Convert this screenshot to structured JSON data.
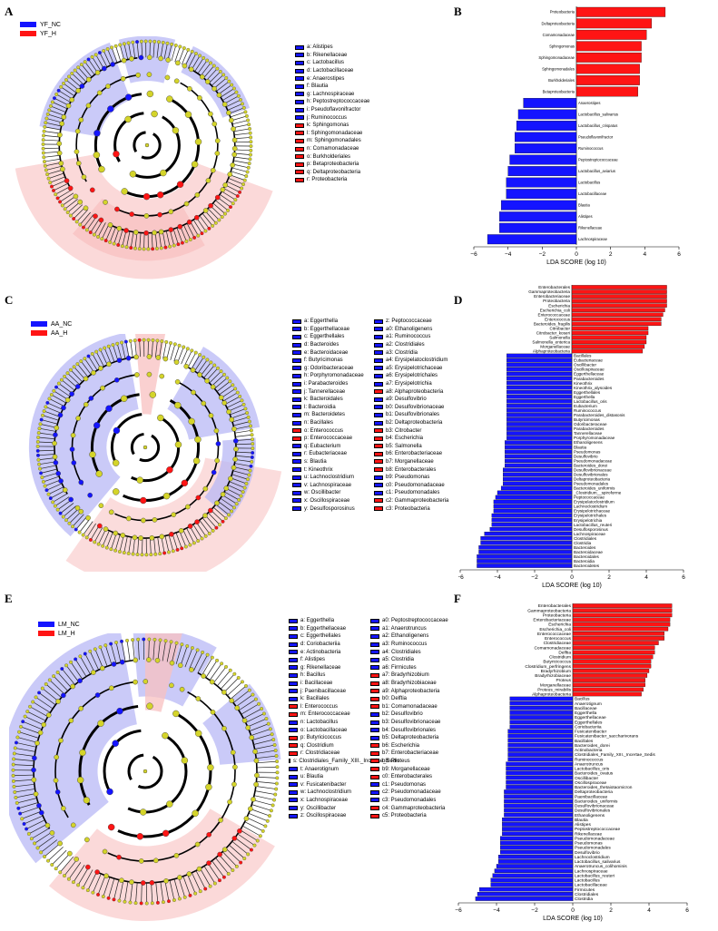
{
  "colors": {
    "nc": "#1414ff",
    "h": "#ff1414",
    "node": "#d4d42a",
    "blue_shade": "#b8b8f5",
    "red_shade": "#f8c0c0"
  },
  "panels": [
    {
      "label": "A",
      "groups": [
        "YF_NC",
        "YF_H"
      ],
      "legend_cols": [
        [
          {
            "t": "a: Alistipes",
            "g": "nc"
          },
          {
            "t": "b: Rikenellaceae",
            "g": "nc"
          },
          {
            "t": "c: Lactobacillus",
            "g": "nc"
          },
          {
            "t": "d: Lactobacillaceae",
            "g": "nc"
          },
          {
            "t": "e: Anaerostipes",
            "g": "nc"
          },
          {
            "t": "f: Blautia",
            "g": "nc"
          },
          {
            "t": "g: Lachnospiraceae",
            "g": "nc"
          },
          {
            "t": "h: Peptostreptococcaceae",
            "g": "nc"
          },
          {
            "t": "i: Pseudoflavonifractor",
            "g": "nc"
          },
          {
            "t": "j: Ruminococcus",
            "g": "nc"
          },
          {
            "t": "k: Sphingomonas",
            "g": "h"
          },
          {
            "t": "l: Sphingomonadaceae",
            "g": "h"
          },
          {
            "t": "m: Sphingomonadales",
            "g": "h"
          },
          {
            "t": "n: Comamonadaceae",
            "g": "h"
          },
          {
            "t": "o: Burkholderiales",
            "g": "h"
          },
          {
            "t": "p: Betaproteobacteria",
            "g": "h"
          },
          {
            "t": "q: Deltaproteobacteria",
            "g": "h"
          },
          {
            "t": "r: Proteobacteria",
            "g": "h"
          }
        ]
      ]
    },
    {
      "label": "C",
      "groups": [
        "AA_NC",
        "AA_H"
      ],
      "legend_cols": [
        [
          {
            "t": "a: Eggerthella",
            "g": "nc"
          },
          {
            "t": "b: Eggerthellaceae",
            "g": "nc"
          },
          {
            "t": "c: Eggerthellales",
            "g": "nc"
          },
          {
            "t": "d: Bacteroides",
            "g": "nc"
          },
          {
            "t": "e: Bacteroidaceae",
            "g": "nc"
          },
          {
            "t": "f: Butyricimonas",
            "g": "nc"
          },
          {
            "t": "g: Odoribacteraceae",
            "g": "nc"
          },
          {
            "t": "h: Porphyromonadaceae",
            "g": "nc"
          },
          {
            "t": "i: Parabacteroides",
            "g": "nc"
          },
          {
            "t": "j: Tannerellaceae",
            "g": "nc"
          },
          {
            "t": "k: Bacteroidales",
            "g": "nc"
          },
          {
            "t": "l: Bacteroidia",
            "g": "nc"
          },
          {
            "t": "m: Bacteroidetes",
            "g": "nc"
          },
          {
            "t": "n: Bacillales",
            "g": "nc"
          },
          {
            "t": "o: Enterococcus",
            "g": "h"
          },
          {
            "t": "p: Enterococcaceae",
            "g": "h"
          },
          {
            "t": "q: Eubacterium",
            "g": "nc"
          },
          {
            "t": "r: Eubacteriaceae",
            "g": "nc"
          },
          {
            "t": "s: Blautia",
            "g": "nc"
          },
          {
            "t": "t: Kineothrix",
            "g": "nc"
          },
          {
            "t": "u: Lachnoclostridium",
            "g": "nc"
          },
          {
            "t": "v: Lachnospiraceae",
            "g": "nc"
          },
          {
            "t": "w: Oscillibacter",
            "g": "nc"
          },
          {
            "t": "x: Oscillospiraceae",
            "g": "nc"
          },
          {
            "t": "y: Desulfosporosinus",
            "g": "nc"
          }
        ],
        [
          {
            "t": "z: Peptococcaceae",
            "g": "nc"
          },
          {
            "t": "a0: Ethanoligenens",
            "g": "nc"
          },
          {
            "t": "a1: Ruminococcus",
            "g": "nc"
          },
          {
            "t": "a2: Clostridiales",
            "g": "nc"
          },
          {
            "t": "a3: Clostridia",
            "g": "nc"
          },
          {
            "t": "a4: Erysipelatoclostridium",
            "g": "nc"
          },
          {
            "t": "a5: Erysipelotrichaceae",
            "g": "nc"
          },
          {
            "t": "a6: Erysipelotrichales",
            "g": "nc"
          },
          {
            "t": "a7: Erysipelotrichia",
            "g": "nc"
          },
          {
            "t": "a8: Alphaproteobacteria",
            "g": "h"
          },
          {
            "t": "a9: Desulfovibrio",
            "g": "nc"
          },
          {
            "t": "b0: Desulfovibrionaceae",
            "g": "nc"
          },
          {
            "t": "b1: Desulfovibrionales",
            "g": "nc"
          },
          {
            "t": "b2: Deltaproteobacteria",
            "g": "nc"
          },
          {
            "t": "b3: Citrobacter",
            "g": "h"
          },
          {
            "t": "b4: Escherichia",
            "g": "h"
          },
          {
            "t": "b5: Salmonella",
            "g": "h"
          },
          {
            "t": "b6: Enterobacteriaceae",
            "g": "h"
          },
          {
            "t": "b7: Morganellaceae",
            "g": "h"
          },
          {
            "t": "b8: Enterobacterales",
            "g": "h"
          },
          {
            "t": "b9: Pseudomonas",
            "g": "nc"
          },
          {
            "t": "c0: Pseudomonadaceae",
            "g": "nc"
          },
          {
            "t": "c1: Pseudomonadales",
            "g": "nc"
          },
          {
            "t": "c2: Gammaproteobacteria",
            "g": "h"
          },
          {
            "t": "c3: Proteobacteria",
            "g": "h"
          }
        ]
      ]
    },
    {
      "label": "E",
      "groups": [
        "LM_NC",
        "LM_H"
      ],
      "legend_cols": [
        [
          {
            "t": "a: Eggerthella",
            "g": "nc"
          },
          {
            "t": "b: Eggerthellaceae",
            "g": "nc"
          },
          {
            "t": "c: Eggerthellales",
            "g": "nc"
          },
          {
            "t": "d: Coriobacteriia",
            "g": "nc"
          },
          {
            "t": "e: Actinobacteria",
            "g": "nc"
          },
          {
            "t": "f: Alistipes",
            "g": "nc"
          },
          {
            "t": "g: Rikenellaceae",
            "g": "nc"
          },
          {
            "t": "h: Bacillus",
            "g": "nc"
          },
          {
            "t": "i: Bacillaceae",
            "g": "nc"
          },
          {
            "t": "j: Paenibacillaceae",
            "g": "nc"
          },
          {
            "t": "k: Bacillales",
            "g": "nc"
          },
          {
            "t": "l: Enterococcus",
            "g": "h"
          },
          {
            "t": "m: Enterococcaceae",
            "g": "h"
          },
          {
            "t": "n: Lactobacillus",
            "g": "nc"
          },
          {
            "t": "o: Lactobacillaceae",
            "g": "nc"
          },
          {
            "t": "p: Butyricicoccus",
            "g": "h"
          },
          {
            "t": "q: Clostridium",
            "g": "h"
          },
          {
            "t": "r: Clostridiaceae",
            "g": "h"
          },
          {
            "t": "s: Clostridiales_Family_XIII._Incertae_Sedis",
            "g": "nc"
          },
          {
            "t": "t: Anaerotignum",
            "g": "nc"
          },
          {
            "t": "u: Blautia",
            "g": "nc"
          },
          {
            "t": "v: Fusicatenibacter",
            "g": "nc"
          },
          {
            "t": "w: Lachnoclostridium",
            "g": "nc"
          },
          {
            "t": "x: Lachnospiraceae",
            "g": "nc"
          },
          {
            "t": "y: Oscillibacter",
            "g": "nc"
          },
          {
            "t": "z: Oscillospiraceae",
            "g": "nc"
          }
        ],
        [
          {
            "t": "a0: Peptostreptococcaceae",
            "g": "nc"
          },
          {
            "t": "a1: Anaerotruncus",
            "g": "nc"
          },
          {
            "t": "a2: Ethanoligenens",
            "g": "nc"
          },
          {
            "t": "a3: Ruminococcus",
            "g": "nc"
          },
          {
            "t": "a4: Clostridiales",
            "g": "nc"
          },
          {
            "t": "a5: Clostridia",
            "g": "nc"
          },
          {
            "t": "a6: Firmicutes",
            "g": "nc"
          },
          {
            "t": "a7: Bradyrhizobium",
            "g": "h"
          },
          {
            "t": "a8: Bradyrhizobiaceae",
            "g": "h"
          },
          {
            "t": "a9: Alphaproteobacteria",
            "g": "h"
          },
          {
            "t": "b0: Delftia",
            "g": "h"
          },
          {
            "t": "b1: Comamonadaceae",
            "g": "h"
          },
          {
            "t": "b2: Desulfovibrio",
            "g": "nc"
          },
          {
            "t": "b3: Desulfovibrionaceae",
            "g": "nc"
          },
          {
            "t": "b4: Desulfovibrionales",
            "g": "nc"
          },
          {
            "t": "b5: Deltaproteobacteria",
            "g": "nc"
          },
          {
            "t": "b6: Escherichia",
            "g": "h"
          },
          {
            "t": "b7: Enterobacteriaceae",
            "g": "h"
          },
          {
            "t": "b8: Proteus",
            "g": "h"
          },
          {
            "t": "b9: Morganellaceae",
            "g": "h"
          },
          {
            "t": "c0: Enterobacterales",
            "g": "h"
          },
          {
            "t": "c1: Pseudomonas",
            "g": "nc"
          },
          {
            "t": "c2: Pseudomonadaceae",
            "g": "nc"
          },
          {
            "t": "c3: Pseudomonadales",
            "g": "nc"
          },
          {
            "t": "c4: Gammaproteobacteria",
            "g": "h"
          },
          {
            "t": "c5: Proteobacteria",
            "g": "h"
          }
        ]
      ]
    }
  ],
  "chart_data": [
    {
      "type": "bar",
      "label": "B",
      "xlabel": "LDA SCORE (log 10)",
      "xlim": [
        -6,
        6
      ],
      "ticks": [
        -6,
        -4,
        -2,
        0,
        2,
        4,
        6
      ],
      "series": [
        {
          "name": "YF_H",
          "color": "red"
        },
        {
          "name": "YF_NC",
          "color": "blue"
        }
      ],
      "categories": [
        "Proteobacteria",
        "Deltaproteobacteria",
        "Comamonadaceae",
        "Sphingomonas",
        "Sphingomonadaceae",
        "Sphingomonadales",
        "Burkholderiales",
        "Betaproteobacteria",
        "Anaerostipes",
        "Lactobacillus_salivarius",
        "Lactobacillus_crispatus",
        "Pseudoflavonifractor",
        "Ruminococcus",
        "Peptostreptococcaceae",
        "Lactobacillus_aviarius",
        "Lactobacillus",
        "Lactobacillaceae",
        "Blautia",
        "Alistipes",
        "Rikenellaceae",
        "Lachnospiraceae"
      ],
      "values": [
        5.2,
        4.4,
        4.1,
        3.8,
        3.8,
        3.7,
        3.7,
        3.6,
        -3.1,
        -3.4,
        -3.5,
        -3.6,
        -3.6,
        -3.9,
        -4.0,
        -4.1,
        -4.1,
        -4.4,
        -4.5,
        -4.5,
        -5.2
      ]
    },
    {
      "type": "bar",
      "label": "D",
      "xlabel": "LDA SCORE (log 10)",
      "xlim": [
        -6,
        6
      ],
      "ticks": [
        -6,
        -4,
        -2,
        0,
        2,
        4,
        6
      ],
      "categories": [
        "Enterobacterales",
        "Gammaproteobacteria",
        "Enterobacteriaceae",
        "Proteobacteria",
        "Escherichia",
        "Escherichia_coli",
        "Enterococcaceae",
        "Enterococcus",
        "Bacteroides_fragilis",
        "Citrobacter",
        "Citrobacter_koseri",
        "Salmonella",
        "Salmonella_enterica",
        "Morganellaceae",
        "Alphaproteobacteria",
        "Bacillales",
        "Eubacteriaceae",
        "Oscillibacter",
        "Oscillospiraceae",
        "Eggerthellaceae",
        "Parabacteroides",
        "Kineothrix",
        "Kineothrix_alysoides",
        "Eggerthellales",
        "Eggerthella",
        "Lactobacillus_oris",
        "Eubacterium",
        "Ruminococcus",
        "Parabacteroides_distasonis",
        "Butyricimonas",
        "Odoribacteraceae",
        "Parabacteroides",
        "Tannerellaceae",
        "Porphyromonadaceae",
        "Ethanoligenens",
        "Blautia",
        "Pseudomonas",
        "Desulfovibrio",
        "Pseudomonadaceae",
        "Bacteroides_dorei",
        "Desulfovibrionaceae",
        "Desulfovibrionales",
        "Deltaproteobacteria",
        "Pseudomonadales",
        "Bacteroides_uniformis",
        "_Clostridium__spiroforme",
        "Peptococcaceae",
        "Erysipelatoclostridium",
        "Lachnoclostridium",
        "Erysipelotrichaceae",
        "Erysipelotrichales",
        "Erysipelotrichia",
        "Lactobacillus_reuteri",
        "Desulfosporosinus",
        "Lachnospiraceae",
        "Clostridiales",
        "Clostridia",
        "Bacteroides",
        "Bacteroidaceae",
        "Bacteroidales",
        "Bacteroidia",
        "Bacteroidetes"
      ],
      "values": [
        5.1,
        5.1,
        5.1,
        5.1,
        5.1,
        5.0,
        4.9,
        4.8,
        4.8,
        4.1,
        4.1,
        4.0,
        4.0,
        3.9,
        3.8,
        -3.5,
        -3.5,
        -3.5,
        -3.5,
        -3.5,
        -3.5,
        -3.5,
        -3.5,
        -3.5,
        -3.5,
        -3.5,
        -3.5,
        -3.5,
        -3.5,
        -3.5,
        -3.5,
        -3.5,
        -3.5,
        -3.5,
        -3.6,
        -3.6,
        -3.6,
        -3.6,
        -3.6,
        -3.6,
        -3.7,
        -3.7,
        -3.7,
        -3.7,
        -3.8,
        -4.0,
        -4.1,
        -4.2,
        -4.2,
        -4.2,
        -4.3,
        -4.3,
        -4.3,
        -4.4,
        -4.7,
        -4.9,
        -4.9,
        -5.0,
        -5.0,
        -5.1,
        -5.1,
        -5.1
      ]
    },
    {
      "type": "bar",
      "label": "F",
      "xlabel": "LDA SCORE (log 10)",
      "xlim": [
        -6,
        6
      ],
      "ticks": [
        -6,
        -4,
        -2,
        0,
        2,
        4,
        6
      ],
      "categories": [
        "Enterobacterales",
        "Gammaproteobacteria",
        "Proteobacteria",
        "Enterobacteriaceae",
        "Escherichia",
        "Escherichia_coli",
        "Enterococcaceae",
        "Enterococcus",
        "Clostridiaceae",
        "Comamonadaceae",
        "Delftia",
        "Clostridium",
        "Butyricicoccus",
        "Clostridium_perfringens",
        "Bradyrhizobium",
        "Bradyrhizobiaceae",
        "Proteus",
        "Morganellaceae",
        "Proteus_mirabilis",
        "Alphaproteobacteria",
        "Bacillus",
        "Anaerotignum",
        "Bacillaceae",
        "Eggerthella",
        "Eggerthellaceae",
        "Eggerthellales",
        "Coriobacteriia",
        "Fusicatenibacter",
        "Fusicatenibacter_saccharivorans",
        "Bacillales",
        "Bacteroides_dorei",
        "Actinobacteria",
        "Clostridiales_Family_XIII._Incertae_Sedis",
        "Ruminococcus",
        "Anaerotruncus",
        "Lactobacillus_oris",
        "Bacteroides_ovatus",
        "Oscillibacter",
        "Oscillospiraceae",
        "Bacteroides_thetaiotaomicron",
        "Deltaproteobacteria",
        "Paenibacillaceae",
        "Bacteroides_uniformis",
        "Desulfovibrionaceae",
        "Desulfovibrionales",
        "Ethanoligenens",
        "Blautia",
        "Alistipes",
        "Peptostreptococcaceae",
        "Rikenellaceae",
        "Pseudomonadaceae",
        "Pseudomonas",
        "Pseudomonadales",
        "Desulfovibrio",
        "Lachnoclostridium",
        "Lactobacillus_salivarius",
        "Anaerotruncus_colihominis",
        "Lachnospiraceae",
        "Lactobacillus_reuteri",
        "Lactobacillus",
        "Lactobacillaceae",
        "Firmicutes",
        "Clostridiales",
        "Clostridia"
      ],
      "values": [
        5.2,
        5.2,
        5.2,
        5.1,
        5.1,
        5.0,
        4.8,
        4.8,
        4.5,
        4.3,
        4.3,
        4.2,
        4.1,
        4.1,
        4.0,
        3.9,
        3.8,
        3.8,
        3.7,
        3.6,
        -3.3,
        -3.3,
        -3.3,
        -3.3,
        -3.3,
        -3.3,
        -3.3,
        -3.4,
        -3.4,
        -3.4,
        -3.4,
        -3.4,
        -3.4,
        -3.4,
        -3.5,
        -3.5,
        -3.5,
        -3.5,
        -3.5,
        -3.5,
        -3.6,
        -3.6,
        -3.6,
        -3.6,
        -3.6,
        -3.6,
        -3.7,
        -3.7,
        -3.7,
        -3.7,
        -3.8,
        -3.8,
        -3.8,
        -3.8,
        -3.9,
        -3.9,
        -4.0,
        -4.1,
        -4.2,
        -4.3,
        -4.3,
        -4.9,
        -5.0,
        -5.1
      ]
    }
  ]
}
